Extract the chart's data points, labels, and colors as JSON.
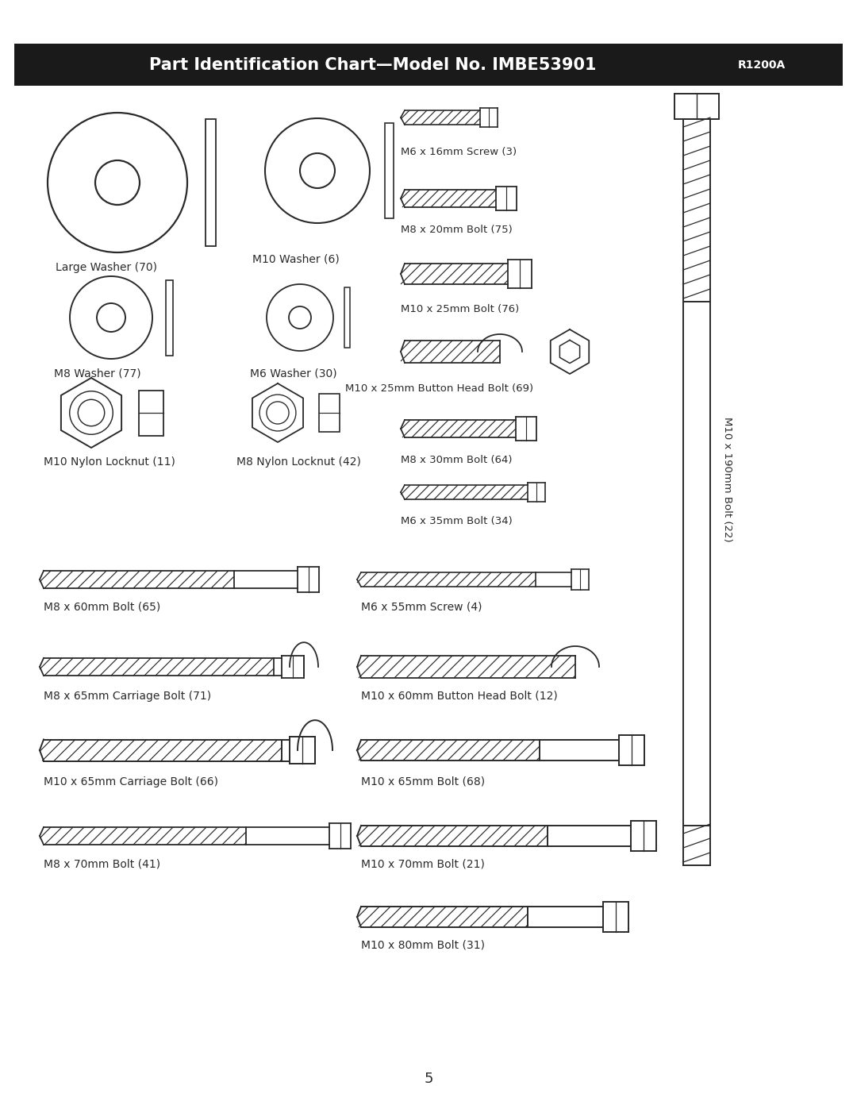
{
  "title_main": "Part Identification Chart—Model No. IMBE53901",
  "title_model": "R1200A",
  "page_number": "5",
  "background": "#ffffff",
  "title_bg": "#1a1a1a",
  "title_fg": "#ffffff",
  "line_color": "#2a2a2a"
}
